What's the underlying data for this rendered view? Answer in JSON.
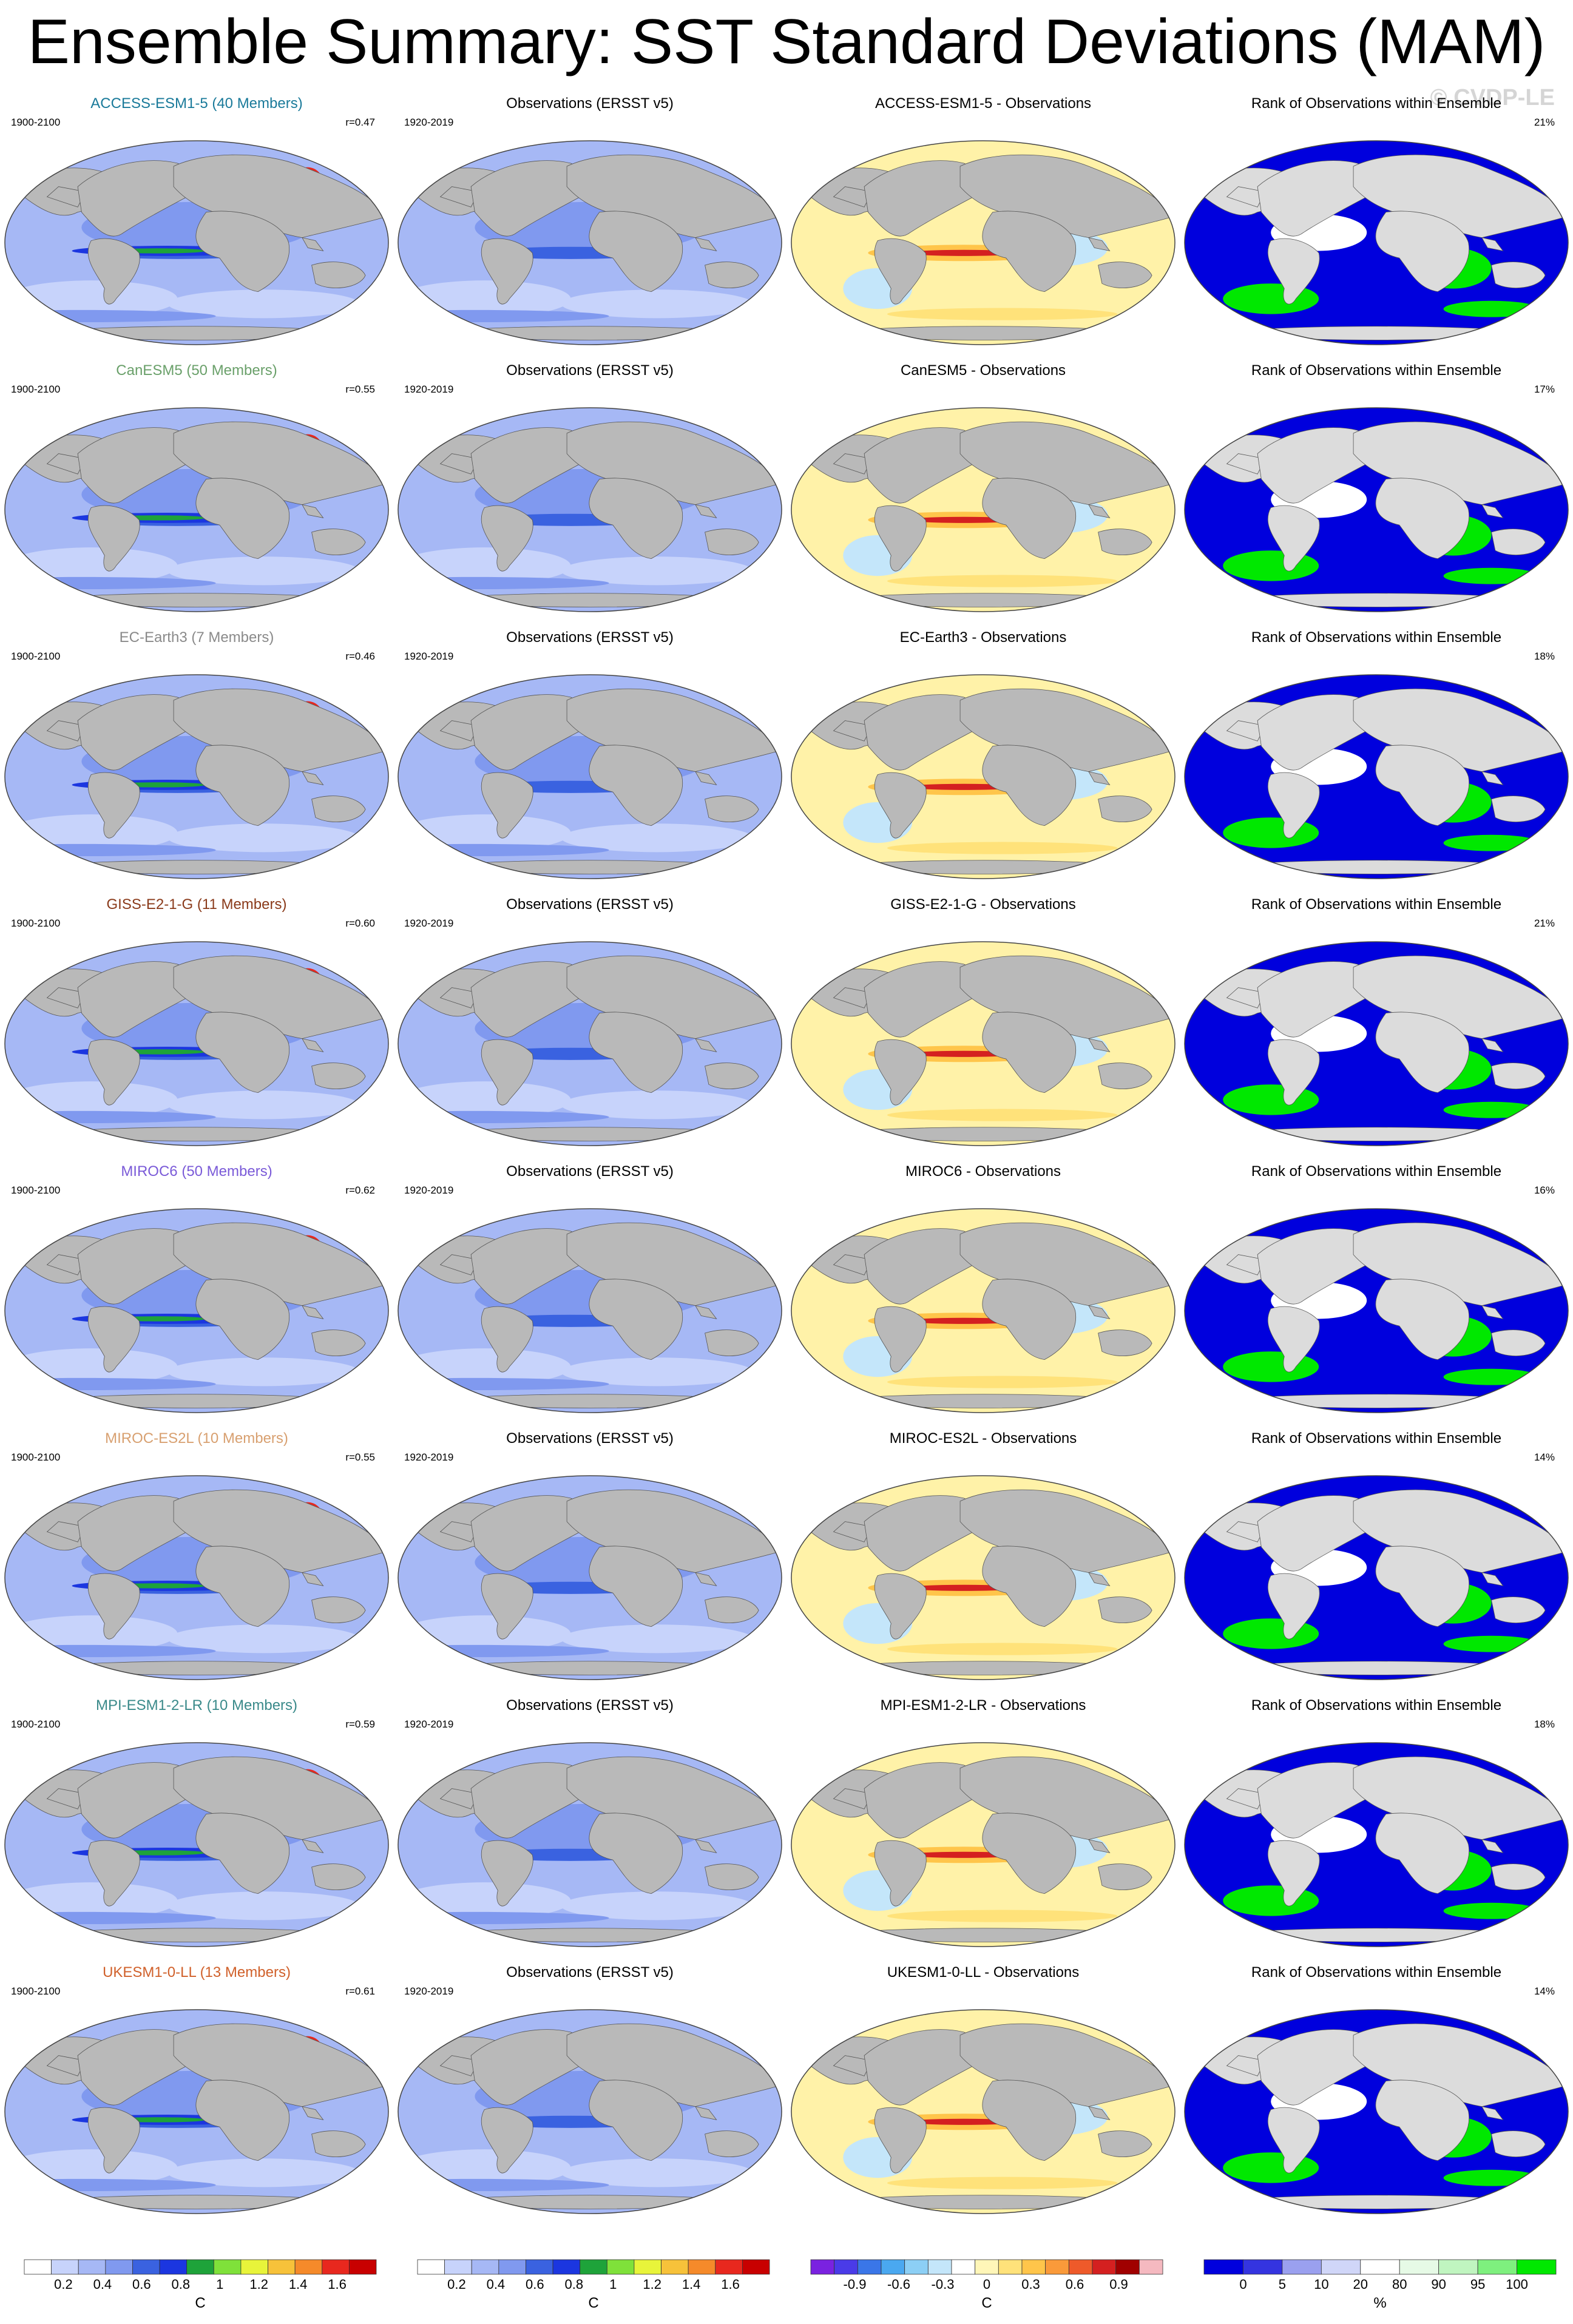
{
  "title": "Ensemble Summary: SST Standard Deviations (MAM)",
  "watermark": "© CVDP-LE",
  "colors": {
    "land": "#b9b9b9",
    "land_light": "#dcdcdc",
    "ocean_base": "#a6b8f5",
    "sd_scale": [
      "#ffffff",
      "#c7d3fb",
      "#a6b8f5",
      "#8099ef",
      "#3a62e0",
      "#1b36e0",
      "#1ea33a",
      "#7fe13a",
      "#e8f43a",
      "#f7c23a",
      "#f58a2a",
      "#e8281e",
      "#c80000"
    ],
    "diff_scale": [
      "#7a22e0",
      "#4a3be8",
      "#3a76e8",
      "#4aa8f0",
      "#8ccff5",
      "#c4e6fa",
      "#ffffff",
      "#fff6b8",
      "#ffe27a",
      "#ffc54a",
      "#fa9a3a",
      "#ee5a2a",
      "#d42020",
      "#a00000",
      "#f5b9c0"
    ],
    "rank_scale": [
      "#0000dd",
      "#3434e0",
      "#9aa0ef",
      "#d0d6f8",
      "#ffffff",
      "#e6fae6",
      "#c0f5c0",
      "#7ef07e",
      "#00e800"
    ],
    "model_colors": [
      "#1a7a9a",
      "#6aa06a",
      "#8a8a8a",
      "#8a3a1a",
      "#7a5ad8",
      "#d8a070",
      "#3a8a8a",
      "#d0602a"
    ]
  },
  "panel_labels": {
    "model_period": "1900-2100",
    "obs_period": "1920-2019",
    "obs_title": "Observations (ERSST v5)",
    "rank_title": "Rank of Observations within Ensemble"
  },
  "rows": [
    {
      "model": "ACCESS-ESM1-5 (40 Members)",
      "r": "r=0.47",
      "diff_title": "ACCESS-ESM1-5 - Observations",
      "rank_pct": "21%"
    },
    {
      "model": "CanESM5 (50 Members)",
      "r": "r=0.55",
      "diff_title": "CanESM5 - Observations",
      "rank_pct": "17%"
    },
    {
      "model": "EC-Earth3 (7 Members)",
      "r": "r=0.46",
      "diff_title": "EC-Earth3 - Observations",
      "rank_pct": "18%"
    },
    {
      "model": "GISS-E2-1-G (11 Members)",
      "r": "r=0.60",
      "diff_title": "GISS-E2-1-G - Observations",
      "rank_pct": "21%"
    },
    {
      "model": "MIROC6 (50 Members)",
      "r": "r=0.62",
      "diff_title": "MIROC6 - Observations",
      "rank_pct": "16%"
    },
    {
      "model": "MIROC-ES2L (10 Members)",
      "r": "r=0.55",
      "diff_title": "MIROC-ES2L - Observations",
      "rank_pct": "14%"
    },
    {
      "model": "MPI-ESM1-2-LR (10 Members)",
      "r": "r=0.59",
      "diff_title": "MPI-ESM1-2-LR - Observations",
      "rank_pct": "18%"
    },
    {
      "model": "UKESM1-0-LL (13 Members)",
      "r": "r=0.61",
      "diff_title": "UKESM1-0-LL - Observations",
      "rank_pct": "14%"
    }
  ],
  "colorbars": [
    {
      "ticks": [
        "0.2",
        "0.4",
        "0.6",
        "0.8",
        "1",
        "1.2",
        "1.4",
        "1.6"
      ],
      "unit": "C"
    },
    {
      "ticks": [
        "0.2",
        "0.4",
        "0.6",
        "0.8",
        "1",
        "1.2",
        "1.4",
        "1.6"
      ],
      "unit": "C"
    },
    {
      "ticks": [
        "-0.9",
        "-0.6",
        "-0.3",
        "0",
        "0.3",
        "0.6",
        "0.9"
      ],
      "unit": "C"
    },
    {
      "ticks": [
        "0",
        "5",
        "10",
        "20",
        "80",
        "90",
        "95",
        "100"
      ],
      "unit": "%"
    }
  ]
}
